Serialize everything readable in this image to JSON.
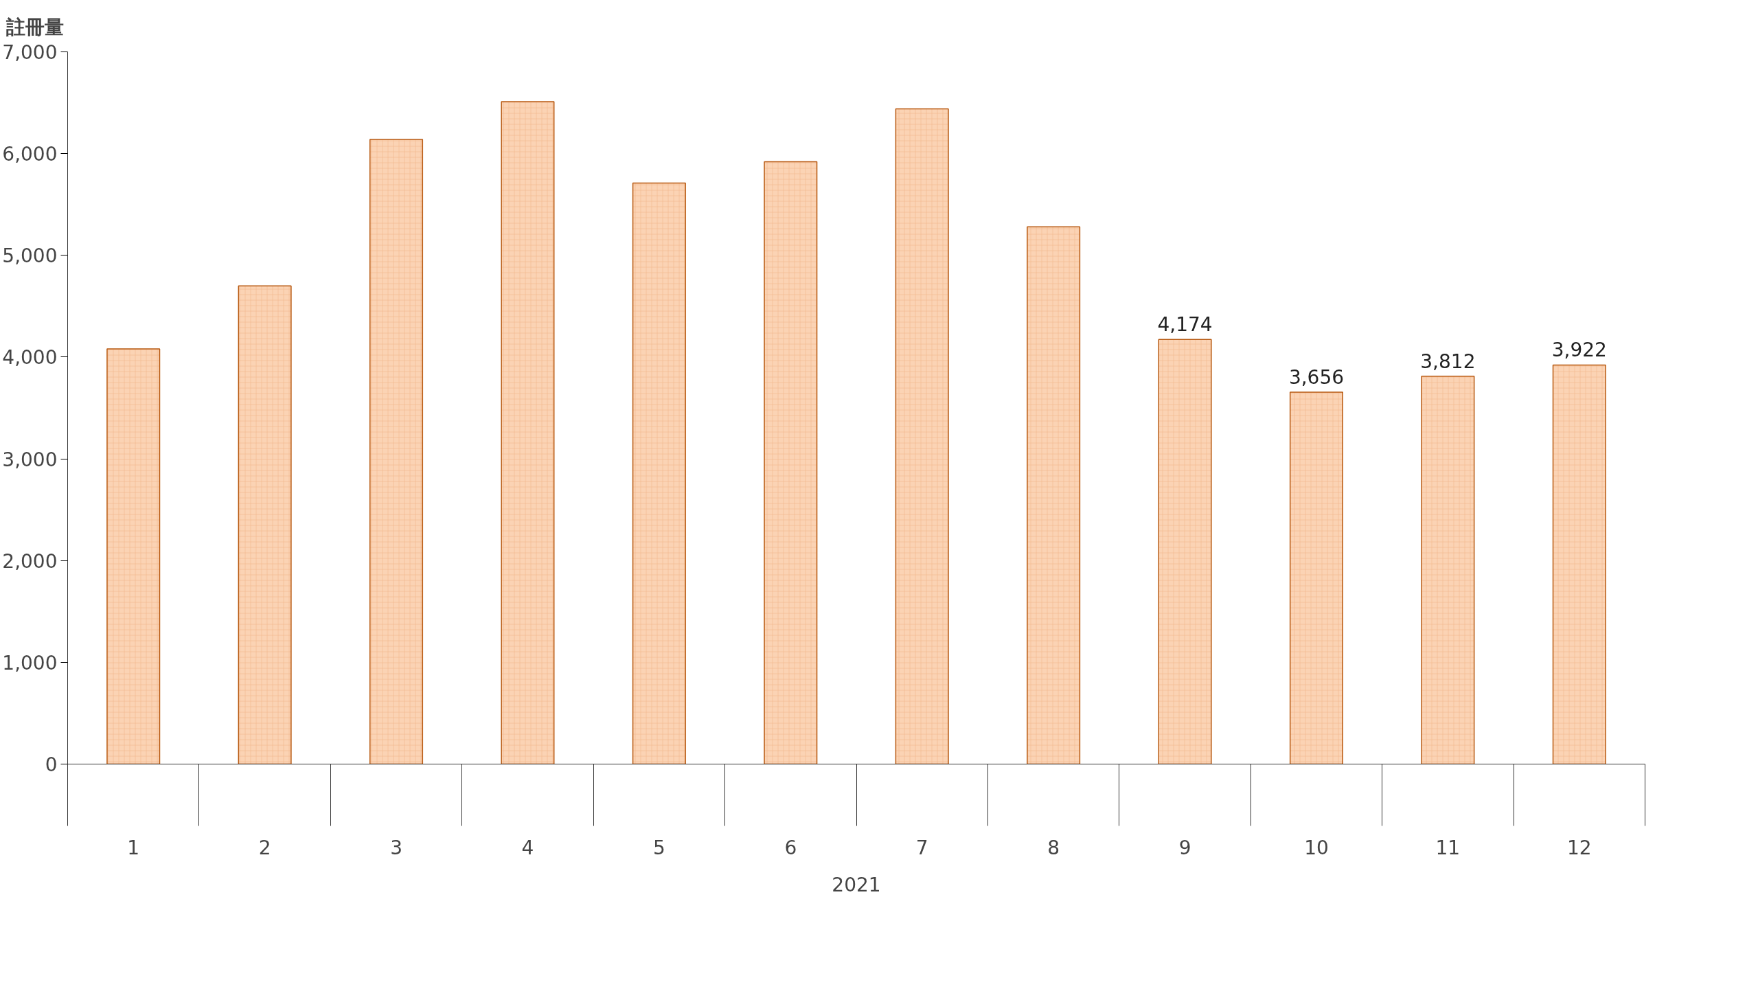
{
  "chart_data": {
    "type": "bar",
    "ylabel": "註冊量",
    "xlabel": "2021",
    "categories": [
      "1",
      "2",
      "3",
      "4",
      "5",
      "6",
      "7",
      "8",
      "9",
      "10",
      "11",
      "12"
    ],
    "values": [
      4080,
      4700,
      6140,
      6510,
      5710,
      5920,
      6440,
      5280,
      4174,
      3656,
      3812,
      3922
    ],
    "value_labels": [
      null,
      null,
      null,
      null,
      null,
      null,
      null,
      null,
      "4,174",
      "3,656",
      "3,812",
      "3,922"
    ],
    "color": "#fbd3b4",
    "ylim": [
      0,
      7000
    ],
    "yticks": [
      0,
      {
        "value": 1000,
        "label": "1,000"
      },
      {
        "value": 2000,
        "label": "2,000"
      },
      {
        "value": 3000,
        "label": "3,000"
      },
      {
        "value": 4000,
        "label": "4,000"
      },
      {
        "value": 5000,
        "label": "5,000"
      },
      {
        "value": 6000,
        "label": "6,000"
      },
      {
        "value": 7000,
        "label": "7,000"
      }
    ],
    "grid": false
  }
}
